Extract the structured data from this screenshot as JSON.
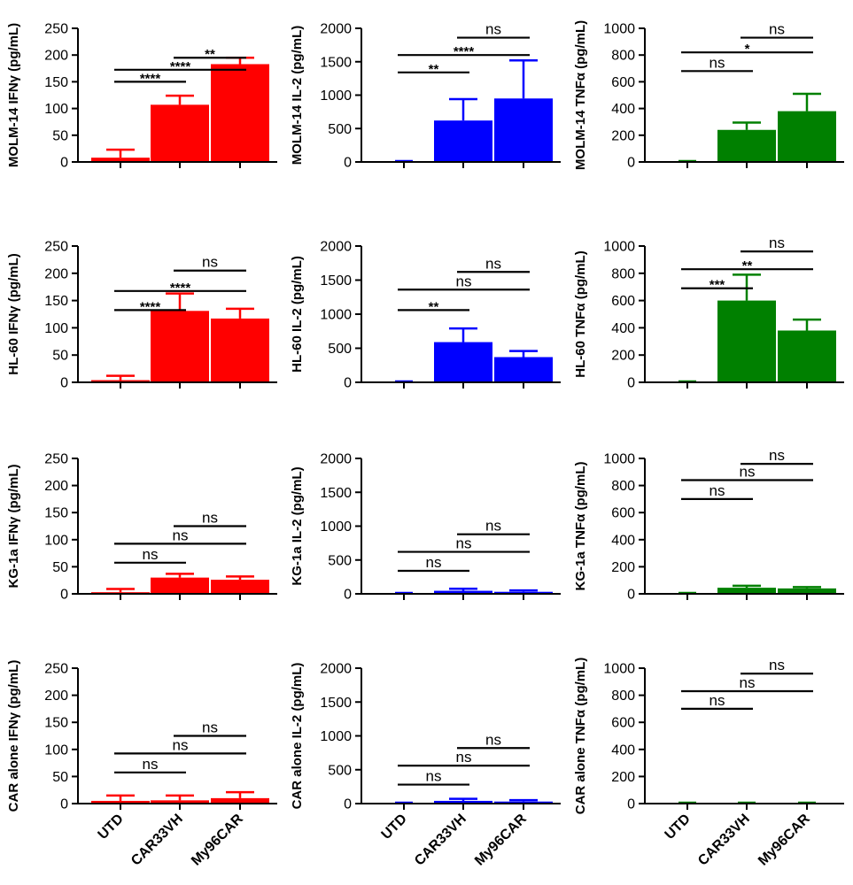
{
  "chart_data": [
    {
      "type": "bar",
      "row": "MOLM-14",
      "cytokine": "IFNγ",
      "ylabel": "MOLM-14 IFNγ (pg/mL)",
      "ylim": [
        0,
        250
      ],
      "yticks": [
        0,
        50,
        100,
        150,
        200,
        250
      ],
      "categories": [
        "UTD",
        "CAR33VH",
        "My96CAR"
      ],
      "values": [
        8,
        107,
        183
      ],
      "errors": [
        15,
        17,
        12
      ],
      "color": "#ff0000",
      "annotations": [
        {
          "from": 0,
          "to": 1,
          "label": "****"
        },
        {
          "from": 0,
          "to": 2,
          "label": "****"
        },
        {
          "from": 1,
          "to": 2,
          "label": "**"
        }
      ]
    },
    {
      "type": "bar",
      "row": "MOLM-14",
      "cytokine": "IL-2",
      "ylabel": "MOLM-14 IL-2 (pg/mL)",
      "ylim": [
        0,
        2000
      ],
      "yticks": [
        0,
        500,
        1000,
        1500,
        2000
      ],
      "categories": [
        "UTD",
        "CAR33VH",
        "My96CAR"
      ],
      "values": [
        0,
        620,
        950
      ],
      "errors": [
        0,
        320,
        570
      ],
      "color": "#0000ff",
      "annotations": [
        {
          "from": 0,
          "to": 1,
          "label": "**"
        },
        {
          "from": 0,
          "to": 2,
          "label": "****"
        },
        {
          "from": 1,
          "to": 2,
          "label": "ns"
        }
      ]
    },
    {
      "type": "bar",
      "row": "MOLM-14",
      "cytokine": "TNFα",
      "ylabel": "MOLM-14 TNFα (pg/mL)",
      "ylim": [
        0,
        1000
      ],
      "yticks": [
        0,
        200,
        400,
        600,
        800,
        1000
      ],
      "categories": [
        "UTD",
        "CAR33VH",
        "My96CAR"
      ],
      "values": [
        0,
        240,
        380
      ],
      "errors": [
        0,
        55,
        130
      ],
      "color": "#008000",
      "annotations": [
        {
          "from": 0,
          "to": 1,
          "label": "ns"
        },
        {
          "from": 0,
          "to": 2,
          "label": "*"
        },
        {
          "from": 1,
          "to": 2,
          "label": "ns"
        }
      ]
    },
    {
      "type": "bar",
      "row": "HL-60",
      "cytokine": "IFNγ",
      "ylabel": "HL-60 IFNγ (pg/mL)",
      "ylim": [
        0,
        250
      ],
      "yticks": [
        0,
        50,
        100,
        150,
        200,
        250
      ],
      "categories": [
        "UTD",
        "CAR33VH",
        "My96CAR"
      ],
      "values": [
        4,
        131,
        117
      ],
      "errors": [
        8,
        32,
        18
      ],
      "color": "#ff0000",
      "annotations": [
        {
          "from": 0,
          "to": 1,
          "label": "****"
        },
        {
          "from": 0,
          "to": 2,
          "label": "****"
        },
        {
          "from": 1,
          "to": 2,
          "label": "ns"
        }
      ]
    },
    {
      "type": "bar",
      "row": "HL-60",
      "cytokine": "IL-2",
      "ylabel": "HL-60 IL-2 (pg/mL)",
      "ylim": [
        0,
        2000
      ],
      "yticks": [
        0,
        500,
        1000,
        1500,
        2000
      ],
      "categories": [
        "UTD",
        "CAR33VH",
        "My96CAR"
      ],
      "values": [
        0,
        590,
        370
      ],
      "errors": [
        0,
        200,
        90
      ],
      "color": "#0000ff",
      "annotations": [
        {
          "from": 0,
          "to": 1,
          "label": "**"
        },
        {
          "from": 0,
          "to": 2,
          "label": "ns"
        },
        {
          "from": 1,
          "to": 2,
          "label": "ns"
        }
      ]
    },
    {
      "type": "bar",
      "row": "HL-60",
      "cytokine": "TNFα",
      "ylabel": "HL-60 TNFα (pg/mL)",
      "ylim": [
        0,
        1000
      ],
      "yticks": [
        0,
        200,
        400,
        600,
        800,
        1000
      ],
      "categories": [
        "UTD",
        "CAR33VH",
        "My96CAR"
      ],
      "values": [
        0,
        600,
        380
      ],
      "errors": [
        0,
        190,
        80
      ],
      "color": "#008000",
      "annotations": [
        {
          "from": 0,
          "to": 1,
          "label": "***"
        },
        {
          "from": 0,
          "to": 2,
          "label": "**"
        },
        {
          "from": 1,
          "to": 2,
          "label": "ns"
        }
      ]
    },
    {
      "type": "bar",
      "row": "KG-1a",
      "cytokine": "IFNγ",
      "ylabel": "KG-1a IFNγ (pg/mL)",
      "ylim": [
        0,
        250
      ],
      "yticks": [
        0,
        50,
        100,
        150,
        200,
        250
      ],
      "categories": [
        "UTD",
        "CAR33VH",
        "My96CAR"
      ],
      "values": [
        3,
        30,
        26
      ],
      "errors": [
        6,
        7,
        6
      ],
      "color": "#ff0000",
      "annotations": [
        {
          "from": 0,
          "to": 1,
          "label": "ns"
        },
        {
          "from": 0,
          "to": 2,
          "label": "ns"
        },
        {
          "from": 1,
          "to": 2,
          "label": "ns"
        }
      ]
    },
    {
      "type": "bar",
      "row": "KG-1a",
      "cytokine": "IL-2",
      "ylabel": "KG-1a IL-2 (pg/mL)",
      "ylim": [
        0,
        2000
      ],
      "yticks": [
        0,
        500,
        1000,
        1500,
        2000
      ],
      "categories": [
        "UTD",
        "CAR33VH",
        "My96CAR"
      ],
      "values": [
        0,
        45,
        30
      ],
      "errors": [
        0,
        30,
        20
      ],
      "color": "#0000ff",
      "annotations": [
        {
          "from": 0,
          "to": 1,
          "label": "ns"
        },
        {
          "from": 0,
          "to": 2,
          "label": "ns"
        },
        {
          "from": 1,
          "to": 2,
          "label": "ns"
        }
      ]
    },
    {
      "type": "bar",
      "row": "KG-1a",
      "cytokine": "TNFα",
      "ylabel": "KG-1a TNFα (pg/mL)",
      "ylim": [
        0,
        1000
      ],
      "yticks": [
        0,
        200,
        400,
        600,
        800,
        1000
      ],
      "categories": [
        "UTD",
        "CAR33VH",
        "My96CAR"
      ],
      "values": [
        0,
        45,
        40
      ],
      "errors": [
        0,
        15,
        10
      ],
      "color": "#008000",
      "annotations": [
        {
          "from": 0,
          "to": 1,
          "label": "ns"
        },
        {
          "from": 0,
          "to": 2,
          "label": "ns"
        },
        {
          "from": 1,
          "to": 2,
          "label": "ns"
        }
      ]
    },
    {
      "type": "bar",
      "row": "CAR alone",
      "cytokine": "IFNγ",
      "ylabel": "CAR alone IFNγ (pg/mL)",
      "ylim": [
        0,
        250
      ],
      "yticks": [
        0,
        50,
        100,
        150,
        200,
        250
      ],
      "categories": [
        "UTD",
        "CAR33VH",
        "My96CAR"
      ],
      "values": [
        5,
        6,
        10
      ],
      "errors": [
        10,
        9,
        11
      ],
      "color": "#ff0000",
      "annotations": [
        {
          "from": 0,
          "to": 1,
          "label": "ns"
        },
        {
          "from": 0,
          "to": 2,
          "label": "ns"
        },
        {
          "from": 1,
          "to": 2,
          "label": "ns"
        }
      ]
    },
    {
      "type": "bar",
      "row": "CAR alone",
      "cytokine": "IL-2",
      "ylabel": "CAR alone IL-2 (pg/mL)",
      "ylim": [
        0,
        2000
      ],
      "yticks": [
        0,
        500,
        1000,
        1500,
        2000
      ],
      "categories": [
        "UTD",
        "CAR33VH",
        "My96CAR"
      ],
      "values": [
        0,
        40,
        30
      ],
      "errors": [
        0,
        30,
        20
      ],
      "color": "#0000ff",
      "annotations": [
        {
          "from": 0,
          "to": 1,
          "label": "ns"
        },
        {
          "from": 0,
          "to": 2,
          "label": "ns"
        },
        {
          "from": 1,
          "to": 2,
          "label": "ns"
        }
      ]
    },
    {
      "type": "bar",
      "row": "CAR alone",
      "cytokine": "TNFα",
      "ylabel": "CAR alone TNFα (pg/mL)",
      "ylim": [
        0,
        1000
      ],
      "yticks": [
        0,
        200,
        400,
        600,
        800,
        1000
      ],
      "categories": [
        "UTD",
        "CAR33VH",
        "My96CAR"
      ],
      "values": [
        0,
        0,
        0
      ],
      "errors": [
        0,
        0,
        0
      ],
      "color": "#008000",
      "annotations": [
        {
          "from": 0,
          "to": 1,
          "label": "ns"
        },
        {
          "from": 0,
          "to": 2,
          "label": "ns"
        },
        {
          "from": 1,
          "to": 2,
          "label": "ns"
        }
      ]
    }
  ]
}
